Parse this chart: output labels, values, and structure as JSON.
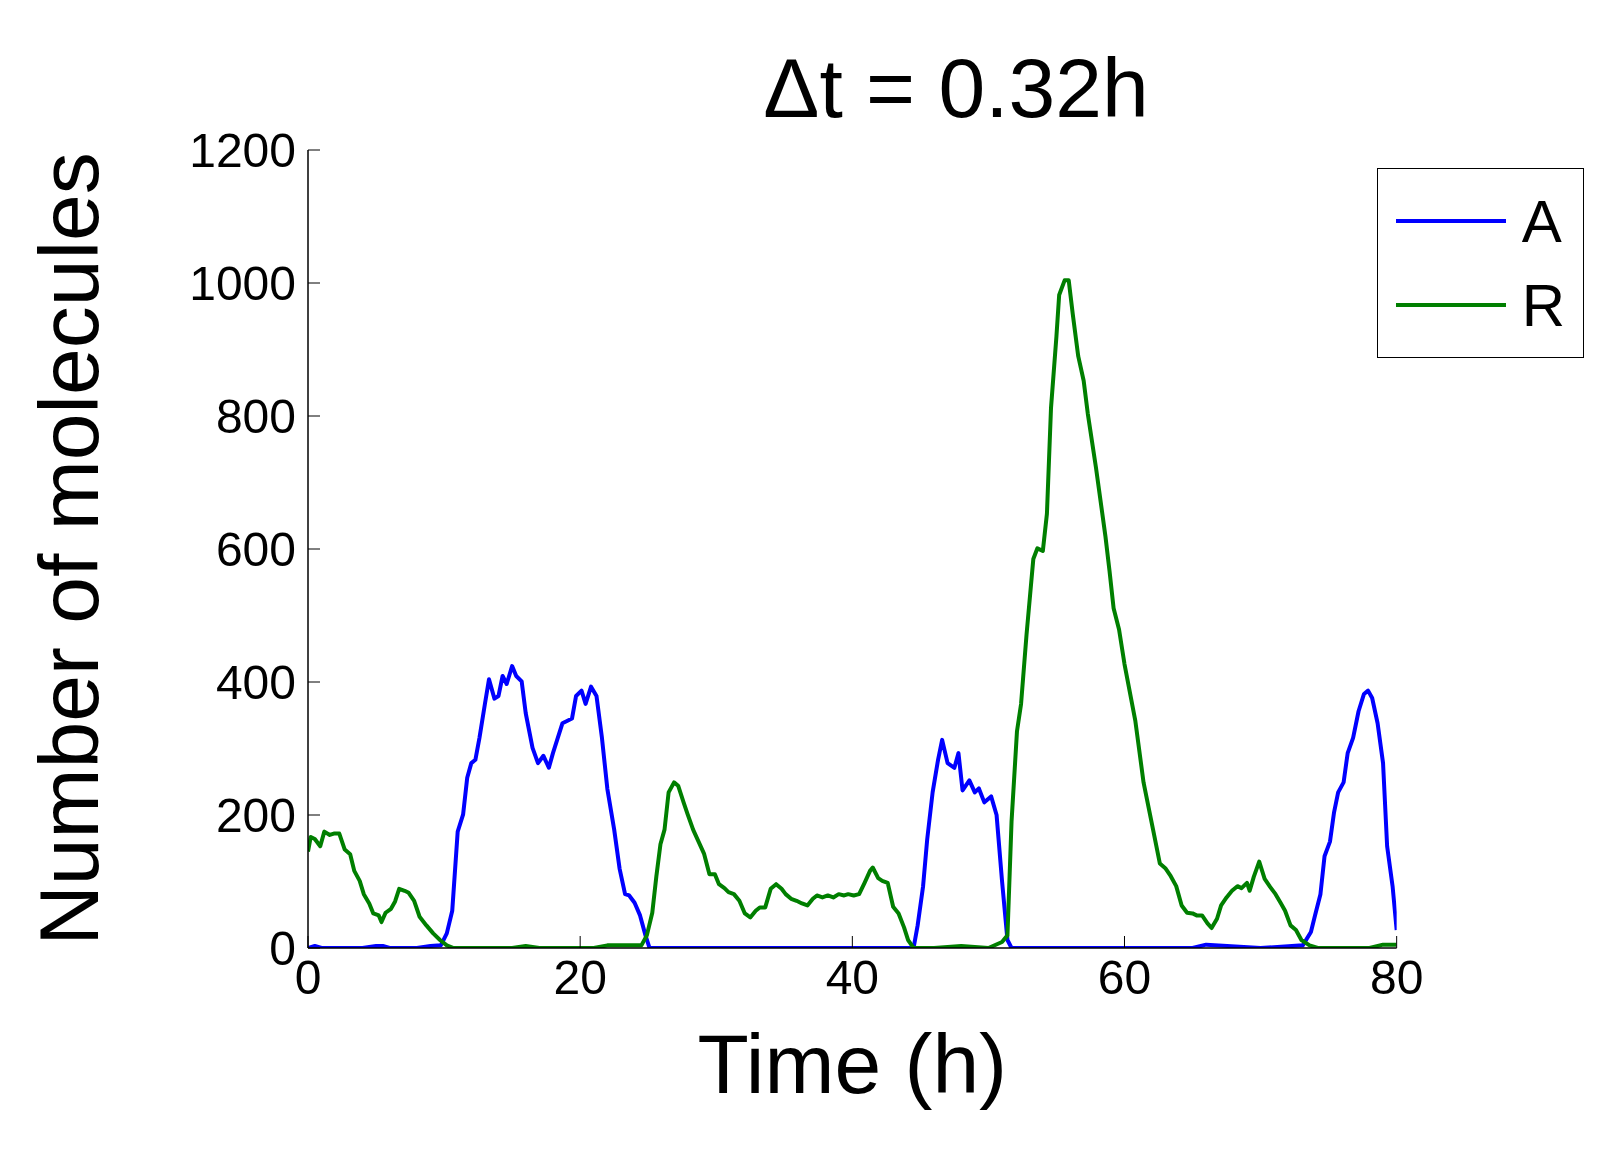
{
  "chart_data": {
    "type": "line",
    "title": "Δt = 0.32h",
    "xlabel": "Time (h)",
    "ylabel": "Number of molecules",
    "xlim": [
      0,
      80
    ],
    "xticks": [
      0,
      20,
      40,
      60,
      80
    ],
    "ylim": [
      0,
      1200
    ],
    "yticks": [
      0,
      200,
      400,
      600,
      800,
      1000,
      1200
    ],
    "legend": "top right",
    "marker": "none",
    "line_style": "solid",
    "series": [
      {
        "name": "A",
        "color": "#0000ff",
        "x": [
          0,
          0.5,
          1,
          2,
          4,
          5,
          5.5,
          6,
          7,
          8,
          9,
          9.76,
          10.2,
          10.6,
          11.0,
          11.4,
          11.7,
          12.0,
          12.3,
          12.6,
          13.0,
          13.3,
          13.7,
          14.0,
          14.3,
          14.6,
          15.0,
          15.3,
          15.7,
          16.0,
          16.5,
          16.9,
          17.3,
          17.7,
          18.0,
          18.7,
          19.4,
          19.7,
          20.1,
          20.4,
          20.8,
          21.2,
          21.6,
          22.0,
          22.5,
          22.9,
          23.3,
          23.6,
          24.0,
          24.4,
          24.8,
          25.1,
          27,
          30,
          35,
          40,
          44.5,
          44.8,
          45.2,
          45.5,
          45.9,
          46.3,
          46.6,
          47.0,
          47.5,
          47.8,
          48.1,
          48.6,
          49.0,
          49.3,
          49.7,
          50.2,
          50.6,
          51.0,
          51.4,
          51.7,
          55,
          60,
          65,
          66,
          70,
          73.1,
          73.7,
          74.0,
          74.4,
          74.7,
          75.1,
          75.4,
          75.7,
          76.1,
          76.4,
          76.8,
          77.2,
          77.6,
          77.9,
          78.2,
          78.6,
          79.0,
          79.3,
          79.7,
          80
        ],
        "values": [
          0,
          3,
          0,
          0,
          0,
          3,
          3,
          0,
          0,
          0,
          3,
          4,
          22,
          56,
          175,
          201,
          256,
          278,
          283,
          316,
          367,
          404,
          375,
          379,
          409,
          397,
          424,
          409,
          401,
          353,
          301,
          278,
          289,
          271,
          293,
          338,
          345,
          379,
          387,
          367,
          393,
          379,
          316,
          239,
          178,
          119,
          81,
          79,
          68,
          49,
          19,
          0,
          0,
          0,
          0,
          0,
          0,
          34,
          93,
          163,
          234,
          283,
          313,
          278,
          271,
          293,
          237,
          252,
          234,
          240,
          219,
          228,
          200,
          101,
          12,
          0,
          0,
          0,
          0,
          5,
          0,
          4,
          24,
          49,
          81,
          138,
          160,
          204,
          234,
          249,
          293,
          316,
          356,
          382,
          387,
          376,
          338,
          278,
          153,
          93,
          27
        ]
      },
      {
        "name": "R",
        "color": "#007f00",
        "x": [
          0,
          0.2,
          0.5,
          0.9,
          1.2,
          1.6,
          1.9,
          2.3,
          2.7,
          3.1,
          3.4,
          3.8,
          4.1,
          4.5,
          4.8,
          5.2,
          5.4,
          5.7,
          6.1,
          6.4,
          6.7,
          7.1,
          7.4,
          7.8,
          8.2,
          8.7,
          9.2,
          9.7,
          10.2,
          10.7,
          15,
          16,
          17,
          21,
          22,
          23,
          24.5,
          24.9,
          25.3,
          25.6,
          25.9,
          26.2,
          26.5,
          26.9,
          27.2,
          27.6,
          27.9,
          28.3,
          28.7,
          29.1,
          29.5,
          29.9,
          30.2,
          30.6,
          30.9,
          31.3,
          31.7,
          32.1,
          32.5,
          32.9,
          33.2,
          33.6,
          34.0,
          34.4,
          34.8,
          35.1,
          35.5,
          35.9,
          36.3,
          36.7,
          37.1,
          37.4,
          37.8,
          38.2,
          38.6,
          39.0,
          39.4,
          39.7,
          40.1,
          40.5,
          40.9,
          41.3,
          41.5,
          41.9,
          42.2,
          42.6,
          43.0,
          43.4,
          43.8,
          44.1,
          44.5,
          46,
          48,
          50,
          51.0,
          51.4,
          51.7,
          52.1,
          52.4,
          52.8,
          53.3,
          53.6,
          54.0,
          54.3,
          54.6,
          55.0,
          55.2,
          55.6,
          55.9,
          56.2,
          56.6,
          57.0,
          57.3,
          57.9,
          58.6,
          58.9,
          59.2,
          59.6,
          60.0,
          60.8,
          61.4,
          62.1,
          62.6,
          63.0,
          63.4,
          63.8,
          64.2,
          64.6,
          65.0,
          65.3,
          65.7,
          66.1,
          66.4,
          66.8,
          67.1,
          67.5,
          67.9,
          68.3,
          68.6,
          69.0,
          69.2,
          69.5,
          69.9,
          70.3,
          70.7,
          71.1,
          71.5,
          71.8,
          72.2,
          72.6,
          73.0,
          73.6,
          74.2,
          76,
          78,
          79,
          80
        ],
        "values": [
          145,
          167,
          164,
          153,
          175,
          170,
          172,
          172,
          148,
          141,
          116,
          101,
          81,
          67,
          52,
          49,
          39,
          53,
          59,
          70,
          89,
          86,
          83,
          71,
          47,
          34,
          22,
          12,
          4,
          0,
          0,
          3,
          0,
          0,
          4,
          4,
          4,
          19,
          53,
          108,
          156,
          178,
          234,
          249,
          244,
          219,
          201,
          178,
          160,
          142,
          111,
          111,
          96,
          90,
          84,
          81,
          71,
          52,
          46,
          56,
          61,
          61,
          89,
          96,
          89,
          81,
          74,
          71,
          67,
          64,
          74,
          79,
          76,
          79,
          76,
          81,
          79,
          81,
          79,
          81,
          98,
          116,
          121,
          105,
          101,
          98,
          62,
          52,
          31,
          12,
          0,
          0,
          3,
          0,
          9,
          19,
          190,
          326,
          367,
          471,
          585,
          601,
          597,
          653,
          812,
          920,
          982,
          1004,
          1004,
          953,
          890,
          853,
          804,
          723,
          619,
          567,
          511,
          479,
          427,
          341,
          249,
          178,
          127,
          120,
          108,
          93,
          64,
          53,
          52,
          49,
          49,
          37,
          30,
          44,
          64,
          76,
          86,
          93,
          90,
          98,
          86,
          107,
          130,
          104,
          92,
          81,
          67,
          56,
          34,
          27,
          12,
          4,
          0,
          0,
          0,
          5,
          5
        ]
      }
    ]
  }
}
